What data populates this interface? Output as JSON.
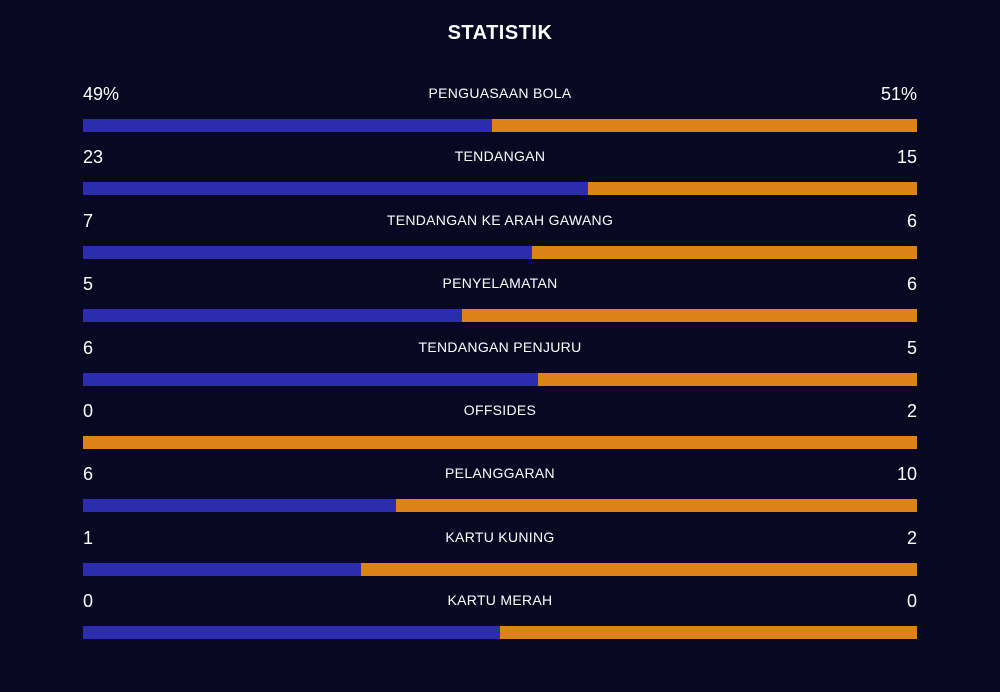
{
  "header": {
    "title": "STATISTIK"
  },
  "colors": {
    "background": "#080822",
    "home": "#2c2caf",
    "away": "#dd8217",
    "text": "#ffffff"
  },
  "stats": [
    {
      "label": "PENGUASAAN BOLA",
      "left": "49%",
      "right": "51%",
      "left_share": 0.49
    },
    {
      "label": "TENDANGAN",
      "left": "23",
      "right": "15",
      "left_share": 0.605
    },
    {
      "label": "TENDANGAN KE ARAH GAWANG",
      "left": "7",
      "right": "6",
      "left_share": 0.538
    },
    {
      "label": "PENYELAMATAN",
      "left": "5",
      "right": "6",
      "left_share": 0.455
    },
    {
      "label": "TENDANGAN PENJURU",
      "left": "6",
      "right": "5",
      "left_share": 0.545
    },
    {
      "label": "OFFSIDES",
      "left": "0",
      "right": "2",
      "left_share": 0
    },
    {
      "label": "PELANGGARAN",
      "left": "6",
      "right": "10",
      "left_share": 0.375
    },
    {
      "label": "KARTU KUNING",
      "left": "1",
      "right": "2",
      "left_share": 0.333
    },
    {
      "label": "KARTU MERAH",
      "left": "0",
      "right": "0",
      "left_share": 0.5
    }
  ]
}
